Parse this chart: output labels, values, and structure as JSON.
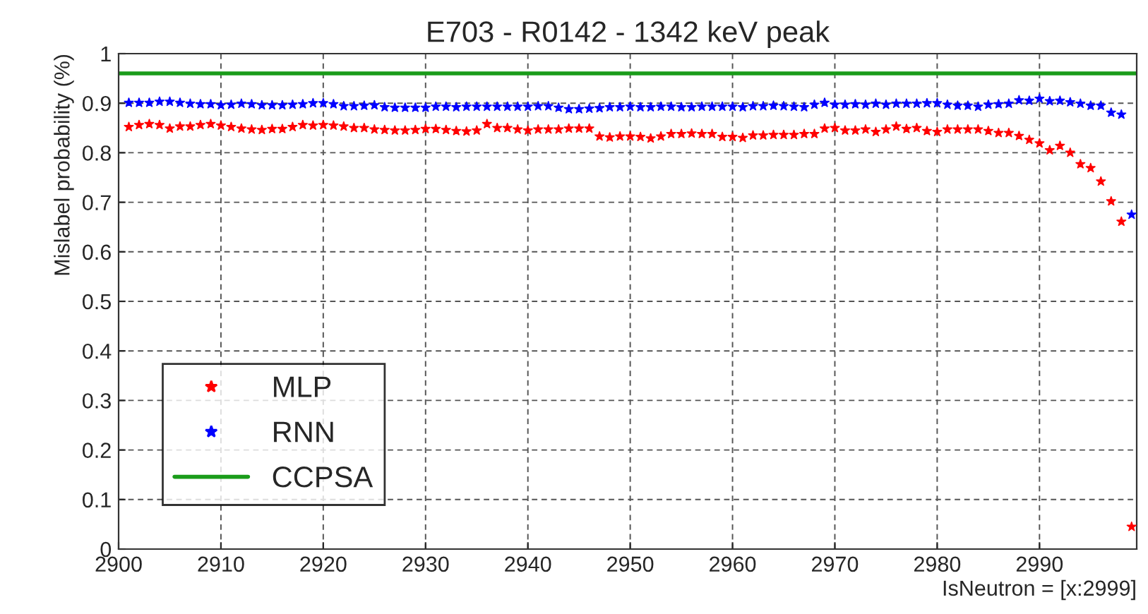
{
  "chart_data": {
    "type": "scatter",
    "title": "E703 - R0142 - 1342 keV peak",
    "xlabel": "IsNeutron = [x:2999]",
    "ylabel": "Mislabel probability (%)",
    "x": [
      2901,
      2902,
      2903,
      2904,
      2905,
      2906,
      2907,
      2908,
      2909,
      2910,
      2911,
      2912,
      2913,
      2914,
      2915,
      2916,
      2917,
      2918,
      2919,
      2920,
      2921,
      2922,
      2923,
      2924,
      2925,
      2926,
      2927,
      2928,
      2929,
      2930,
      2931,
      2932,
      2933,
      2934,
      2935,
      2936,
      2937,
      2938,
      2939,
      2940,
      2941,
      2942,
      2943,
      2944,
      2945,
      2946,
      2947,
      2948,
      2949,
      2950,
      2951,
      2952,
      2953,
      2954,
      2955,
      2956,
      2957,
      2958,
      2959,
      2960,
      2961,
      2962,
      2963,
      2964,
      2965,
      2966,
      2967,
      2968,
      2969,
      2970,
      2971,
      2972,
      2973,
      2974,
      2975,
      2976,
      2977,
      2978,
      2979,
      2980,
      2981,
      2982,
      2983,
      2984,
      2985,
      2986,
      2987,
      2988,
      2989,
      2990,
      2991,
      2992,
      2993,
      2994,
      2995,
      2996,
      2997,
      2998,
      2999
    ],
    "series": [
      {
        "name": "MLP",
        "color": "#ff0000",
        "marker": "star",
        "values": [
          0.852,
          0.856,
          0.858,
          0.856,
          0.849,
          0.853,
          0.853,
          0.856,
          0.858,
          0.855,
          0.852,
          0.849,
          0.847,
          0.846,
          0.848,
          0.848,
          0.852,
          0.856,
          0.855,
          0.856,
          0.855,
          0.853,
          0.85,
          0.85,
          0.847,
          0.846,
          0.845,
          0.845,
          0.846,
          0.848,
          0.848,
          0.846,
          0.844,
          0.843,
          0.845,
          0.858,
          0.85,
          0.85,
          0.847,
          0.845,
          0.847,
          0.847,
          0.847,
          0.849,
          0.849,
          0.849,
          0.833,
          0.831,
          0.833,
          0.833,
          0.832,
          0.829,
          0.833,
          0.838,
          0.838,
          0.839,
          0.838,
          0.838,
          0.832,
          0.832,
          0.83,
          0.835,
          0.835,
          0.836,
          0.836,
          0.836,
          0.838,
          0.838,
          0.849,
          0.85,
          0.845,
          0.845,
          0.847,
          0.842,
          0.847,
          0.853,
          0.848,
          0.85,
          0.844,
          0.842,
          0.847,
          0.847,
          0.847,
          0.847,
          0.844,
          0.84,
          0.84,
          0.834,
          0.826,
          0.819,
          0.805,
          0.814,
          0.8,
          0.777,
          0.769,
          0.742,
          0.702,
          0.661,
          0.045
        ]
      },
      {
        "name": "RNN",
        "color": "#0000ff",
        "marker": "star",
        "values": [
          0.901,
          0.901,
          0.901,
          0.903,
          0.903,
          0.901,
          0.899,
          0.898,
          0.898,
          0.896,
          0.897,
          0.899,
          0.898,
          0.896,
          0.896,
          0.896,
          0.897,
          0.898,
          0.9,
          0.9,
          0.898,
          0.894,
          0.894,
          0.895,
          0.896,
          0.892,
          0.891,
          0.891,
          0.891,
          0.891,
          0.893,
          0.893,
          0.892,
          0.893,
          0.893,
          0.893,
          0.893,
          0.893,
          0.893,
          0.893,
          0.894,
          0.894,
          0.891,
          0.888,
          0.888,
          0.889,
          0.89,
          0.892,
          0.892,
          0.893,
          0.892,
          0.892,
          0.893,
          0.893,
          0.892,
          0.892,
          0.893,
          0.893,
          0.893,
          0.893,
          0.892,
          0.894,
          0.894,
          0.895,
          0.894,
          0.893,
          0.892,
          0.897,
          0.901,
          0.897,
          0.897,
          0.898,
          0.897,
          0.899,
          0.897,
          0.899,
          0.899,
          0.899,
          0.9,
          0.9,
          0.897,
          0.895,
          0.895,
          0.893,
          0.897,
          0.898,
          0.899,
          0.906,
          0.905,
          0.909,
          0.904,
          0.905,
          0.902,
          0.899,
          0.895,
          0.895,
          0.881,
          0.877,
          0.675
        ]
      },
      {
        "name": "CCPSA",
        "color": "#1a9c1a",
        "type": "line",
        "marker": "none",
        "line_style": "solid",
        "x": [
          2900,
          2999.5
        ],
        "values": [
          0.96,
          0.96
        ]
      }
    ],
    "xlim": [
      2900,
      2999.5
    ],
    "xticks": [
      2900,
      2910,
      2920,
      2930,
      2940,
      2950,
      2960,
      2970,
      2980,
      2990
    ],
    "ylim": [
      0,
      1
    ],
    "yticks": [
      0,
      0.1,
      0.2,
      0.3,
      0.4,
      0.5,
      0.6,
      0.7,
      0.8,
      0.9,
      1
    ],
    "grid": true,
    "legend": "bottom left"
  }
}
